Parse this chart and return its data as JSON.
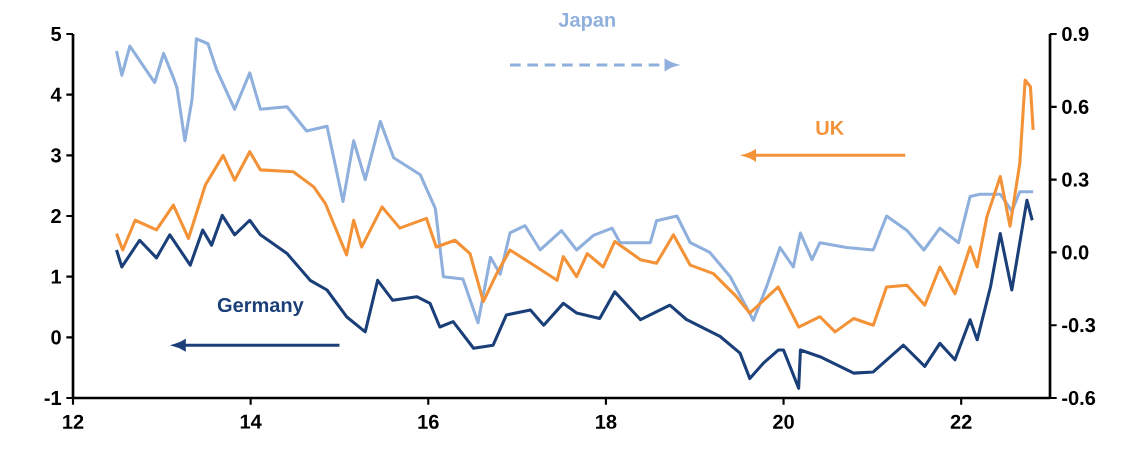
{
  "chart_data": {
    "type": "line",
    "xlim": [
      12,
      23
    ],
    "xticks": [
      12,
      14,
      16,
      18,
      20,
      22
    ],
    "ylim": [
      -1,
      5
    ],
    "yticks": [
      -1,
      0,
      1,
      2,
      3,
      4,
      5
    ],
    "y2lim": [
      -0.6,
      0.9
    ],
    "y2ticks": [
      -0.6,
      -0.3,
      {
        "value": 0,
        "label": "0.0"
      },
      0.3,
      0.6,
      0.9
    ],
    "grid": false,
    "series": [
      {
        "name": "Japan",
        "color": "#8fb0dc",
        "axis": "y2",
        "x": [
          12.49,
          12.55,
          12.64,
          12.92,
          13.02,
          13.13,
          13.17,
          13.26,
          13.34,
          13.39,
          13.52,
          13.62,
          13.82,
          13.99,
          14.11,
          14.41,
          14.63,
          14.86,
          15.04,
          15.16,
          15.29,
          15.46,
          15.61,
          15.91,
          16.08,
          16.17,
          16.39,
          16.56,
          16.7,
          16.81,
          16.92,
          17.09,
          17.26,
          17.5,
          17.67,
          17.86,
          18.07,
          18.16,
          18.5,
          18.57,
          18.8,
          18.95,
          19.17,
          19.4,
          19.66,
          19.81,
          19.96,
          20.11,
          20.19,
          20.32,
          20.41,
          20.71,
          21.01,
          21.16,
          21.39,
          21.58,
          21.76,
          21.97,
          22.1,
          22.21,
          22.44,
          22.57,
          22.66,
          22.81
        ],
        "values": [
          0.83,
          0.73,
          0.85,
          0.7,
          0.82,
          0.72,
          0.68,
          0.46,
          0.63,
          0.88,
          0.86,
          0.75,
          0.59,
          0.74,
          0.59,
          0.6,
          0.5,
          0.52,
          0.21,
          0.46,
          0.3,
          0.54,
          0.39,
          0.32,
          0.18,
          -0.1,
          -0.11,
          -0.29,
          -0.02,
          -0.09,
          0.08,
          0.11,
          0.01,
          0.09,
          0.01,
          0.07,
          0.1,
          0.04,
          0.04,
          0.13,
          0.15,
          0.04,
          0.0,
          -0.1,
          -0.28,
          -0.14,
          0.02,
          -0.06,
          0.08,
          -0.03,
          0.04,
          0.02,
          0.01,
          0.15,
          0.09,
          0.01,
          0.1,
          0.04,
          0.23,
          0.24,
          0.24,
          0.17,
          0.25,
          0.25
        ]
      },
      {
        "name": "UK",
        "color": "#f39237",
        "x": [
          12.49,
          12.56,
          12.7,
          12.94,
          13.13,
          13.3,
          13.49,
          13.69,
          13.82,
          13.99,
          14.11,
          14.48,
          14.71,
          14.84,
          15.08,
          15.16,
          15.25,
          15.48,
          15.68,
          15.98,
          16.09,
          16.3,
          16.47,
          16.62,
          16.77,
          16.92,
          17.22,
          17.45,
          17.52,
          17.67,
          17.79,
          17.97,
          18.1,
          18.39,
          18.57,
          18.76,
          18.95,
          19.21,
          19.47,
          19.62,
          19.94,
          20.17,
          20.41,
          20.58,
          20.79,
          21.01,
          21.16,
          21.39,
          21.59,
          21.76,
          21.93,
          22.1,
          22.18,
          22.29,
          22.44,
          22.55,
          22.66,
          22.72,
          22.78,
          22.81
        ],
        "values": [
          1.71,
          1.44,
          1.93,
          1.77,
          2.18,
          1.63,
          2.51,
          3.0,
          2.59,
          3.06,
          2.76,
          2.73,
          2.48,
          2.21,
          1.36,
          1.93,
          1.49,
          2.15,
          1.8,
          1.96,
          1.49,
          1.6,
          1.38,
          0.59,
          1.05,
          1.44,
          1.16,
          0.94,
          1.33,
          1.0,
          1.38,
          1.16,
          1.58,
          1.28,
          1.22,
          1.69,
          1.19,
          1.05,
          0.67,
          0.4,
          0.83,
          0.17,
          0.34,
          0.09,
          0.31,
          0.2,
          0.83,
          0.86,
          0.53,
          1.16,
          0.72,
          1.49,
          1.16,
          1.99,
          2.65,
          1.83,
          2.87,
          4.24,
          4.13,
          3.42
        ]
      },
      {
        "name": "Germany",
        "color": "#1b3f78",
        "x": [
          12.49,
          12.55,
          12.75,
          12.94,
          13.09,
          13.32,
          13.46,
          13.56,
          13.68,
          13.82,
          13.99,
          14.11,
          14.41,
          14.67,
          14.86,
          15.08,
          15.29,
          15.43,
          15.6,
          15.87,
          16.02,
          16.13,
          16.28,
          16.51,
          16.73,
          16.88,
          17.15,
          17.3,
          17.52,
          17.67,
          17.93,
          18.1,
          18.39,
          18.72,
          18.91,
          19.29,
          19.51,
          19.62,
          19.77,
          19.94,
          20.0,
          20.17,
          20.19,
          20.41,
          20.79,
          21.01,
          21.35,
          21.59,
          21.76,
          21.93,
          22.1,
          22.18,
          22.33,
          22.44,
          22.57,
          22.74,
          22.8
        ],
        "values": [
          1.44,
          1.16,
          1.6,
          1.31,
          1.69,
          1.19,
          1.77,
          1.52,
          2.01,
          1.69,
          1.93,
          1.69,
          1.38,
          0.94,
          0.78,
          0.34,
          0.09,
          0.94,
          0.61,
          0.67,
          0.56,
          0.17,
          0.26,
          -0.18,
          -0.13,
          0.37,
          0.45,
          0.2,
          0.56,
          0.4,
          0.31,
          0.75,
          0.29,
          0.53,
          0.29,
          0.01,
          -0.26,
          -0.68,
          -0.43,
          -0.21,
          -0.21,
          -0.84,
          -0.21,
          -0.32,
          -0.59,
          -0.57,
          -0.13,
          -0.48,
          -0.1,
          -0.37,
          0.29,
          -0.04,
          0.83,
          1.71,
          0.78,
          2.26,
          1.93
        ]
      }
    ]
  }
}
